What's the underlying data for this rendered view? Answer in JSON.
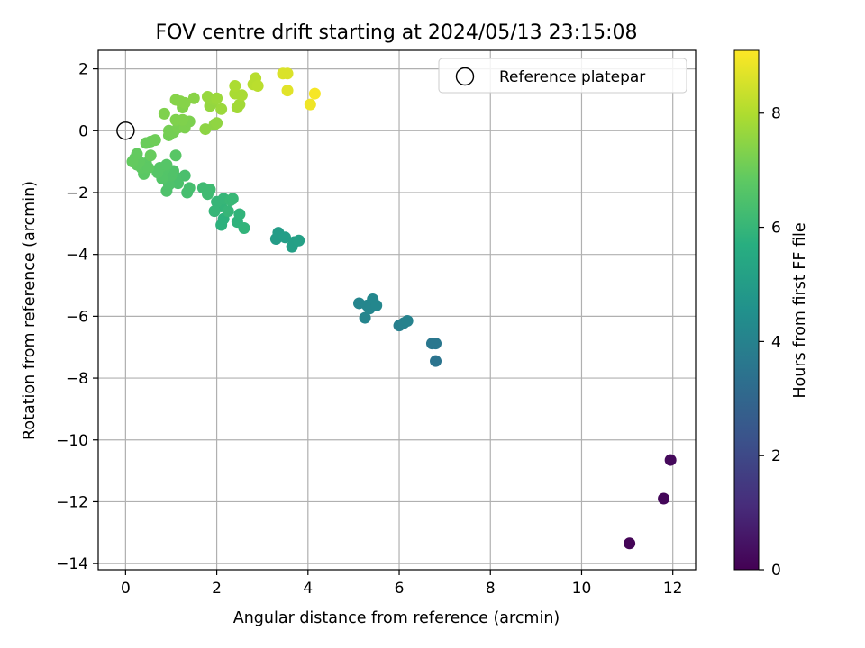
{
  "chart_data": {
    "type": "scatter",
    "title": "FOV centre drift starting at 2024/05/13 23:15:08",
    "xlabel": "Angular distance from reference (arcmin)",
    "ylabel": "Rotation from reference (arcmin)",
    "xlim": [
      -0.6,
      12.5
    ],
    "ylim": [
      -14.2,
      2.6
    ],
    "xticks": [
      0,
      2,
      4,
      6,
      8,
      10,
      12
    ],
    "yticks": [
      -14,
      -12,
      -10,
      -8,
      -6,
      -4,
      -2,
      0,
      2
    ],
    "grid": true,
    "legend": {
      "placement": "upper right",
      "entries": [
        "Reference platepar"
      ]
    },
    "reference_point": {
      "label": "Reference platepar",
      "x": 0,
      "y": 0
    },
    "colorbar": {
      "label": "Hours from first FF file",
      "range": [
        0,
        9.1
      ],
      "ticks": [
        0,
        2,
        4,
        6,
        8
      ],
      "colormap": "viridis"
    },
    "points": [
      {
        "x": 11.05,
        "y": -13.35,
        "c": 0.1
      },
      {
        "x": 11.8,
        "y": -11.9,
        "c": 0.15
      },
      {
        "x": 11.95,
        "y": -10.65,
        "c": 0.2
      },
      {
        "x": 6.8,
        "y": -7.45,
        "c": 3.5
      },
      {
        "x": 6.72,
        "y": -6.88,
        "c": 3.6
      },
      {
        "x": 6.8,
        "y": -6.88,
        "c": 3.6
      },
      {
        "x": 6.0,
        "y": -6.3,
        "c": 3.9
      },
      {
        "x": 6.1,
        "y": -6.22,
        "c": 3.95
      },
      {
        "x": 6.18,
        "y": -6.15,
        "c": 4.0
      },
      {
        "x": 5.12,
        "y": -5.58,
        "c": 4.1
      },
      {
        "x": 5.25,
        "y": -6.05,
        "c": 4.1
      },
      {
        "x": 5.3,
        "y": -5.65,
        "c": 4.15
      },
      {
        "x": 5.35,
        "y": -5.75,
        "c": 4.15
      },
      {
        "x": 5.42,
        "y": -5.45,
        "c": 4.2
      },
      {
        "x": 5.5,
        "y": -5.65,
        "c": 4.2
      },
      {
        "x": 3.3,
        "y": -3.5,
        "c": 5.0
      },
      {
        "x": 3.35,
        "y": -3.3,
        "c": 5.0
      },
      {
        "x": 3.5,
        "y": -3.45,
        "c": 5.05
      },
      {
        "x": 3.65,
        "y": -3.75,
        "c": 5.1
      },
      {
        "x": 3.7,
        "y": -3.6,
        "c": 5.1
      },
      {
        "x": 3.8,
        "y": -3.55,
        "c": 5.15
      },
      {
        "x": 2.1,
        "y": -3.05,
        "c": 5.8
      },
      {
        "x": 2.15,
        "y": -2.85,
        "c": 5.8
      },
      {
        "x": 2.45,
        "y": -2.95,
        "c": 5.85
      },
      {
        "x": 2.5,
        "y": -2.7,
        "c": 5.9
      },
      {
        "x": 2.6,
        "y": -3.15,
        "c": 5.9
      },
      {
        "x": 2.1,
        "y": -2.45,
        "c": 5.95
      },
      {
        "x": 2.0,
        "y": -2.3,
        "c": 6.0
      },
      {
        "x": 1.95,
        "y": -2.6,
        "c": 6.0
      },
      {
        "x": 2.15,
        "y": -2.2,
        "c": 6.0
      },
      {
        "x": 2.3,
        "y": -2.25,
        "c": 6.05
      },
      {
        "x": 2.35,
        "y": -2.2,
        "c": 6.05
      },
      {
        "x": 2.25,
        "y": -2.6,
        "c": 6.0
      },
      {
        "x": 1.7,
        "y": -1.85,
        "c": 6.2
      },
      {
        "x": 1.85,
        "y": -1.9,
        "c": 6.2
      },
      {
        "x": 1.8,
        "y": -2.05,
        "c": 6.2
      },
      {
        "x": 1.35,
        "y": -2.0,
        "c": 6.35
      },
      {
        "x": 1.4,
        "y": -1.85,
        "c": 6.35
      },
      {
        "x": 1.3,
        "y": -1.45,
        "c": 6.4
      },
      {
        "x": 1.1,
        "y": -1.5,
        "c": 6.45
      },
      {
        "x": 1.15,
        "y": -1.7,
        "c": 6.45
      },
      {
        "x": 0.9,
        "y": -1.95,
        "c": 6.5
      },
      {
        "x": 0.95,
        "y": -1.75,
        "c": 6.5
      },
      {
        "x": 1.0,
        "y": -1.45,
        "c": 6.55
      },
      {
        "x": 1.05,
        "y": -1.3,
        "c": 6.55
      },
      {
        "x": 0.85,
        "y": -1.25,
        "c": 6.6
      },
      {
        "x": 0.8,
        "y": -1.55,
        "c": 6.6
      },
      {
        "x": 0.75,
        "y": -1.2,
        "c": 6.65
      },
      {
        "x": 0.7,
        "y": -1.35,
        "c": 6.65
      },
      {
        "x": 0.9,
        "y": -1.1,
        "c": 6.65
      },
      {
        "x": 1.1,
        "y": -0.8,
        "c": 6.7
      },
      {
        "x": 0.4,
        "y": -1.4,
        "c": 6.75
      },
      {
        "x": 0.35,
        "y": -1.2,
        "c": 6.8
      },
      {
        "x": 0.45,
        "y": -1.05,
        "c": 6.8
      },
      {
        "x": 0.5,
        "y": -1.2,
        "c": 6.8
      },
      {
        "x": 0.3,
        "y": -1.0,
        "c": 6.85
      },
      {
        "x": 0.2,
        "y": -0.9,
        "c": 6.85
      },
      {
        "x": 0.25,
        "y": -1.1,
        "c": 6.85
      },
      {
        "x": 0.15,
        "y": -1.0,
        "c": 6.9
      },
      {
        "x": 0.25,
        "y": -0.75,
        "c": 6.9
      },
      {
        "x": 0.55,
        "y": -0.8,
        "c": 6.95
      },
      {
        "x": 0.45,
        "y": -0.4,
        "c": 7.0
      },
      {
        "x": 0.55,
        "y": -0.35,
        "c": 7.0
      },
      {
        "x": 0.65,
        "y": -0.3,
        "c": 7.05
      },
      {
        "x": 0.95,
        "y": -0.15,
        "c": 7.1
      },
      {
        "x": 0.95,
        "y": 0.0,
        "c": 7.15
      },
      {
        "x": 1.05,
        "y": -0.05,
        "c": 7.15
      },
      {
        "x": 1.15,
        "y": 0.1,
        "c": 7.2
      },
      {
        "x": 1.2,
        "y": 0.2,
        "c": 7.2
      },
      {
        "x": 1.3,
        "y": 0.1,
        "c": 7.25
      },
      {
        "x": 1.4,
        "y": 0.3,
        "c": 7.25
      },
      {
        "x": 1.25,
        "y": 0.35,
        "c": 7.3
      },
      {
        "x": 1.1,
        "y": 0.35,
        "c": 7.3
      },
      {
        "x": 0.85,
        "y": 0.55,
        "c": 7.3
      },
      {
        "x": 1.25,
        "y": 0.75,
        "c": 7.35
      },
      {
        "x": 1.3,
        "y": 0.9,
        "c": 7.4
      },
      {
        "x": 1.1,
        "y": 1.0,
        "c": 7.4
      },
      {
        "x": 1.2,
        "y": 0.95,
        "c": 7.4
      },
      {
        "x": 1.5,
        "y": 1.05,
        "c": 7.45
      },
      {
        "x": 1.75,
        "y": 0.05,
        "c": 7.5
      },
      {
        "x": 1.95,
        "y": 0.2,
        "c": 7.5
      },
      {
        "x": 2.0,
        "y": 0.25,
        "c": 7.55
      },
      {
        "x": 1.85,
        "y": 0.8,
        "c": 7.6
      },
      {
        "x": 1.9,
        "y": 0.9,
        "c": 7.6
      },
      {
        "x": 1.8,
        "y": 1.1,
        "c": 7.65
      },
      {
        "x": 1.95,
        "y": 1.0,
        "c": 7.65
      },
      {
        "x": 2.0,
        "y": 1.05,
        "c": 7.7
      },
      {
        "x": 2.1,
        "y": 0.7,
        "c": 7.7
      },
      {
        "x": 2.45,
        "y": 0.75,
        "c": 7.8
      },
      {
        "x": 2.5,
        "y": 0.85,
        "c": 7.8
      },
      {
        "x": 2.4,
        "y": 1.2,
        "c": 7.9
      },
      {
        "x": 2.55,
        "y": 1.15,
        "c": 7.9
      },
      {
        "x": 2.4,
        "y": 1.45,
        "c": 7.95
      },
      {
        "x": 2.8,
        "y": 1.5,
        "c": 8.1
      },
      {
        "x": 2.85,
        "y": 1.7,
        "c": 8.1
      },
      {
        "x": 2.9,
        "y": 1.45,
        "c": 8.15
      },
      {
        "x": 3.45,
        "y": 1.85,
        "c": 8.6
      },
      {
        "x": 3.55,
        "y": 1.85,
        "c": 8.6
      },
      {
        "x": 3.55,
        "y": 1.3,
        "c": 8.7
      },
      {
        "x": 4.05,
        "y": 0.85,
        "c": 8.9
      },
      {
        "x": 4.15,
        "y": 1.2,
        "c": 9.0
      }
    ]
  }
}
